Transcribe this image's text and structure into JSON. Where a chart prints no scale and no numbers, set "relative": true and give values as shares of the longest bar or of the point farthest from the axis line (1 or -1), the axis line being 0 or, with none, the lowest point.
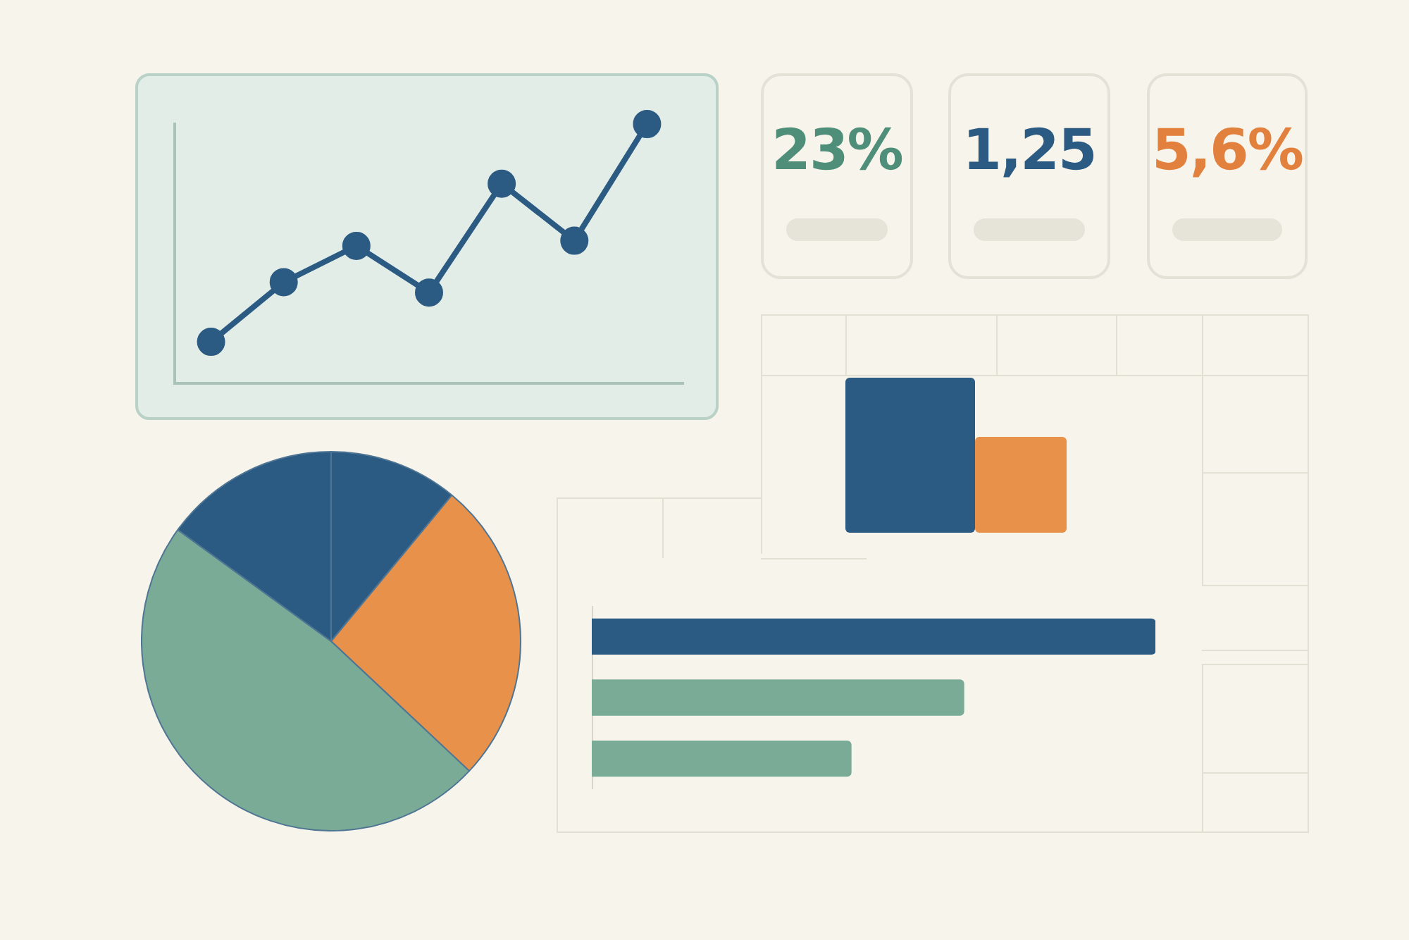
{
  "chart_data": [
    {
      "type": "line",
      "relative": true,
      "categories": [
        null,
        null,
        null,
        null,
        null,
        null,
        null
      ],
      "series": [
        {
          "color": "#2b5a82",
          "values": [
            0.16,
            0.39,
            0.53,
            0.35,
            0.77,
            0.55,
            1
          ]
        }
      ],
      "marker": "circle",
      "line_style": "solid",
      "grid": false,
      "legend": false,
      "tick_labels": false
    },
    {
      "type": "pie",
      "categories": [
        null,
        null,
        null,
        null
      ],
      "values": [
        11,
        26,
        48,
        15
      ],
      "colors": [
        "#2b5a82",
        "#e8914a",
        "#7aab97",
        "#2b5a82"
      ],
      "legend": false
    },
    {
      "type": "bar",
      "orientation": "horizontal",
      "relative": true,
      "categories": [
        null,
        null,
        null
      ],
      "values": [
        1,
        0.66,
        0.46
      ],
      "colors": [
        "#2b5a82",
        "#7aab97",
        "#7aab97"
      ],
      "grid": false,
      "legend": false,
      "tick_labels": false
    },
    {
      "type": "other",
      "annotations": [
        "23%",
        "1,25",
        "5,6%"
      ],
      "colors": [
        "#4f8f7a",
        "#2b5a82",
        "#e2813e"
      ]
    }
  ]
}
